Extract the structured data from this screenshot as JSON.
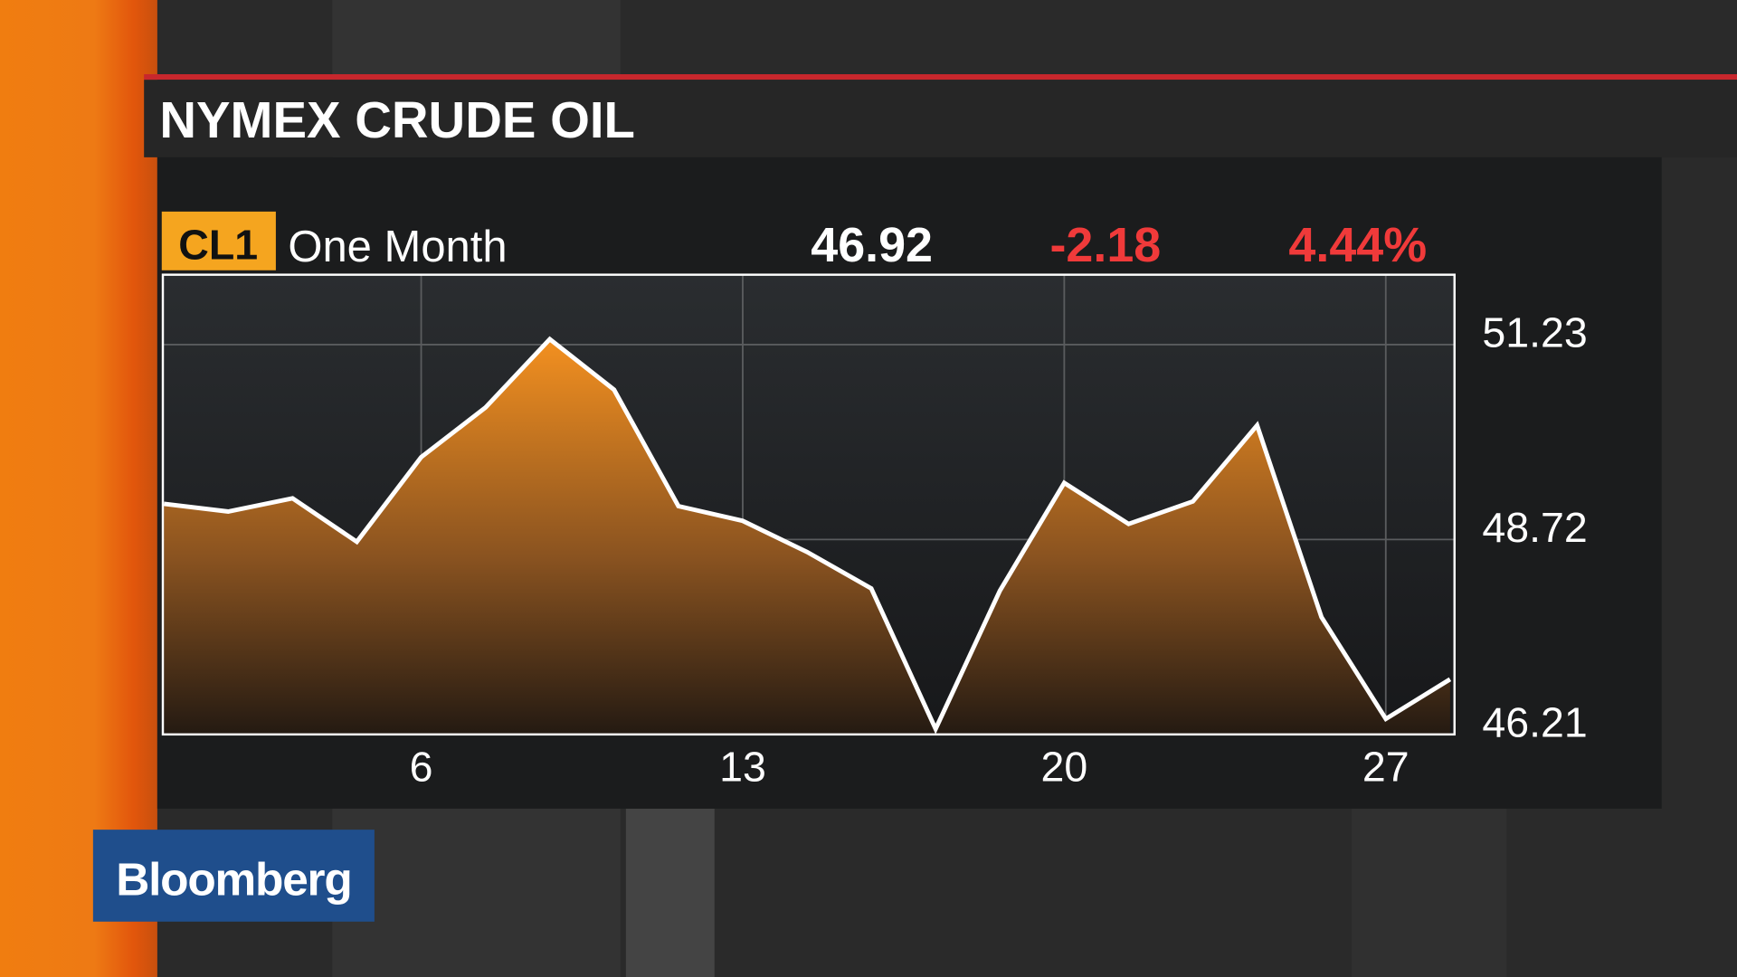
{
  "title": "NYMEX CRUDE OIL",
  "brand": "Bloomberg",
  "chart_data": {
    "type": "area",
    "ticker": "CL1",
    "period": "One Month",
    "price": "46.92",
    "change": "-2.18",
    "change_percent": "4.44%",
    "categories": [
      null,
      null,
      null,
      null,
      "6",
      null,
      null,
      null,
      null,
      "13",
      null,
      null,
      null,
      null,
      "20",
      null,
      null,
      null,
      null,
      "27",
      null
    ],
    "values": [
      49.18,
      49.08,
      49.25,
      48.69,
      49.78,
      50.42,
      51.3,
      50.65,
      49.15,
      48.96,
      48.56,
      48.09,
      46.28,
      48.06,
      49.45,
      48.92,
      49.21,
      50.19,
      47.72,
      46.41,
      46.92
    ],
    "ylim": [
      46.21,
      52.13
    ],
    "yticks": [
      46.21,
      48.72,
      51.23
    ],
    "line_color": "#ffffff",
    "fill_color": "#f39020",
    "grid": true
  }
}
